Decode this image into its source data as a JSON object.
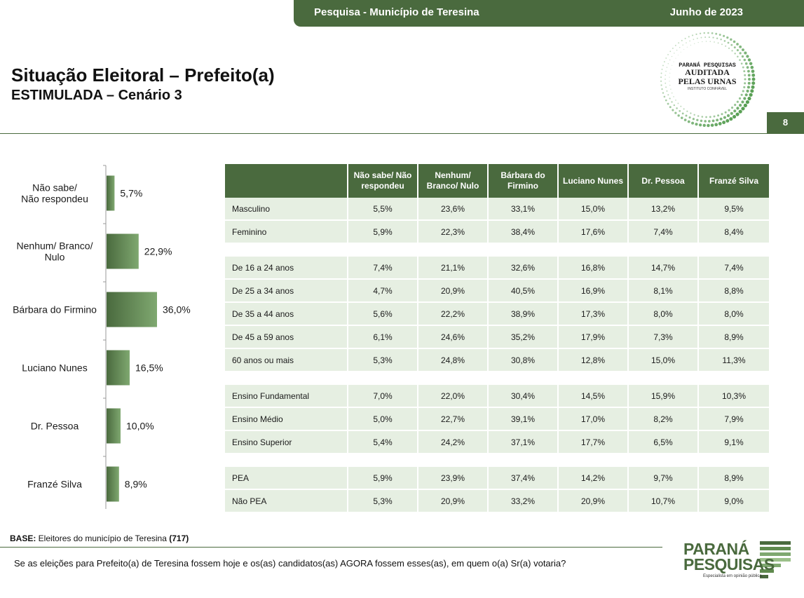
{
  "header": {
    "survey": "Pesquisa - Município de Teresina",
    "date": "Junho de 2023"
  },
  "title": "Situação Eleitoral – Prefeito(a)",
  "subtitle": "ESTIMULADA – Cenário 3",
  "page_number": "8",
  "seal": {
    "line1": "PARANÁ PESQUISAS",
    "line2": "AUDITADA",
    "line3": "PELAS URNAS",
    "line4": "INSTITUTO CONFIÁVEL"
  },
  "colors": {
    "primary": "#4a6a3e",
    "row_bg": "#e6efe2",
    "bar_light": "#7fa870"
  },
  "chart_data": {
    "type": "bar",
    "orientation": "horizontal",
    "categories": [
      [
        "Não sabe/",
        "Não respondeu"
      ],
      [
        "Nenhum/ Branco/",
        "Nulo"
      ],
      [
        "Bárbara do Firmino"
      ],
      [
        "Luciano Nunes"
      ],
      [
        "Dr. Pessoa"
      ],
      [
        "Franzé Silva"
      ]
    ],
    "values": [
      5.7,
      22.9,
      36.0,
      16.5,
      10.0,
      8.9
    ],
    "value_labels": [
      "5,7%",
      "22,9%",
      "36,0%",
      "16,5%",
      "10,0%",
      "8,9%"
    ]
  },
  "table": {
    "headers": [
      "",
      "Não sabe/ Não respondeu",
      "Nenhum/ Branco/ Nulo",
      "Bárbara do Firmino",
      "Luciano Nunes",
      "Dr. Pessoa",
      "Franzé Silva"
    ],
    "groups": [
      [
        [
          "Masculino",
          "5,5%",
          "23,6%",
          "33,1%",
          "15,0%",
          "13,2%",
          "9,5%"
        ],
        [
          "Feminino",
          "5,9%",
          "22,3%",
          "38,4%",
          "17,6%",
          "7,4%",
          "8,4%"
        ]
      ],
      [
        [
          "De 16 a 24 anos",
          "7,4%",
          "21,1%",
          "32,6%",
          "16,8%",
          "14,7%",
          "7,4%"
        ],
        [
          "De 25 a 34 anos",
          "4,7%",
          "20,9%",
          "40,5%",
          "16,9%",
          "8,1%",
          "8,8%"
        ],
        [
          "De 35 a 44 anos",
          "5,6%",
          "22,2%",
          "38,9%",
          "17,3%",
          "8,0%",
          "8,0%"
        ],
        [
          "De 45 a 59 anos",
          "6,1%",
          "24,6%",
          "35,2%",
          "17,9%",
          "7,3%",
          "8,9%"
        ],
        [
          "60 anos ou mais",
          "5,3%",
          "24,8%",
          "30,8%",
          "12,8%",
          "15,0%",
          "11,3%"
        ]
      ],
      [
        [
          "Ensino Fundamental",
          "7,0%",
          "22,0%",
          "30,4%",
          "14,5%",
          "15,9%",
          "10,3%"
        ],
        [
          "Ensino Médio",
          "5,0%",
          "22,7%",
          "39,1%",
          "17,0%",
          "8,2%",
          "7,9%"
        ],
        [
          "Ensino Superior",
          "5,4%",
          "24,2%",
          "37,1%",
          "17,7%",
          "6,5%",
          "9,1%"
        ]
      ],
      [
        [
          "PEA",
          "5,9%",
          "23,9%",
          "37,4%",
          "14,2%",
          "9,7%",
          "8,9%"
        ],
        [
          "Não PEA",
          "5,3%",
          "20,9%",
          "33,2%",
          "20,9%",
          "10,7%",
          "9,0%"
        ]
      ]
    ]
  },
  "footer": {
    "base_label": "BASE:",
    "base_text": " Eleitores do município de Teresina ",
    "base_count": "(717)",
    "question": "Se as eleições para Prefeito(a) de Teresina fossem hoje e os(as) candidatos(as) AGORA fossem esses(as), em quem o(a) Sr(a) votaria?",
    "brand_line1": "PARANÁ",
    "brand_line2": "PESQUISAS",
    "brand_tag": "Especialista em opinião pública."
  }
}
